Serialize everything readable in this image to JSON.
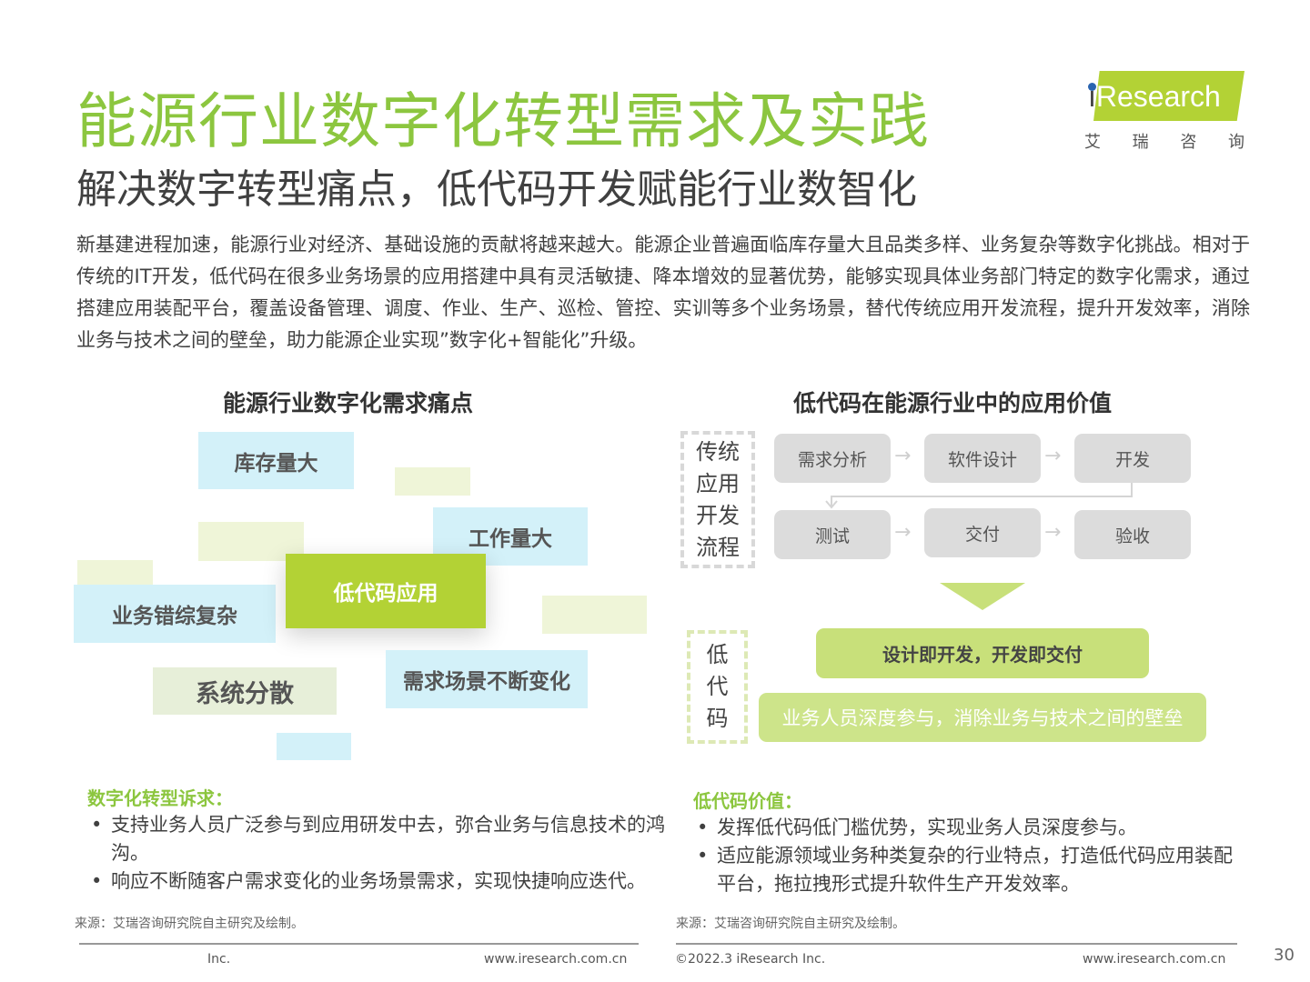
{
  "title": "能源行业数字化转型需求及实践",
  "subtitle": "解决数字转型痛点，低代码开发赋能行业数智化",
  "logo": {
    "text": "iResearch",
    "cn": [
      "艾",
      "瑞",
      "咨",
      "询"
    ],
    "brand_color": "#b3d235"
  },
  "intro": "新基建进程加速，能源行业对经济、基础设施的贡献将越来越大。能源企业普遍面临库存量大且品类多样、业务复杂等数字化挑战。相对于传统的IT开发，低代码在很多业务场景的应用搭建中具有灵活敏捷、降本增效的显著优势，能够实现具体业务部门特定的数字化需求，通过搭建应用装配平台，覆盖设备管理、调度、作业、生产、巡检、管控、实训等多个业务场景，替代传统应用开发流程，提升开发效率，消除业务与技术之间的壁垒，助力能源企业实现”数字化+智能化”升级。",
  "left": {
    "heading": "能源行业数字化需求痛点",
    "blocks": {
      "inventory": "库存量大",
      "workload": "工作量大",
      "complex": "业务错综复杂",
      "core": "低代码应用",
      "scattered": "系统分散",
      "changing": "需求场景不断变化"
    },
    "subheading": "数字化转型诉求：",
    "bullets": [
      "支持业务人员广泛参与到应用研发中去，弥合业务与信息技术的鸿沟。",
      "响应不断随客户需求变化的业务场景需求，实现快捷响应迭代。"
    ],
    "source": "来源：艾瑞咨询研究院自主研究及绘制。"
  },
  "right": {
    "heading": "低代码在能源行业中的应用价值",
    "traditional_label": [
      "传统",
      "应用",
      "开发",
      "流程"
    ],
    "steps": [
      "需求分析",
      "软件设计",
      "开发",
      "测试",
      "交付",
      "验收"
    ],
    "lowcode_label": [
      "低",
      "代",
      "码"
    ],
    "value1": "设计即开发，开发即交付",
    "value2": "业务人员深度参与，消除业务与技术之间的壁垒",
    "subheading": "低代码价值：",
    "bullets": [
      "发挥低代码低门槛优势，实现业务人员深度参与。",
      "适应能源领域业务种类复杂的行业特点，打造低代码应用装配平台，拖拉拽形式提升软件生产开发效率。"
    ],
    "source": "来源：艾瑞咨询研究院自主研究及绘制。"
  },
  "footer": {
    "left_inc": "Inc.",
    "left_url": "www.iresearch.com.cn",
    "copyright": "©2022.3 iResearch Inc.",
    "right_url": "www.iresearch.com.cn",
    "page": "30"
  }
}
